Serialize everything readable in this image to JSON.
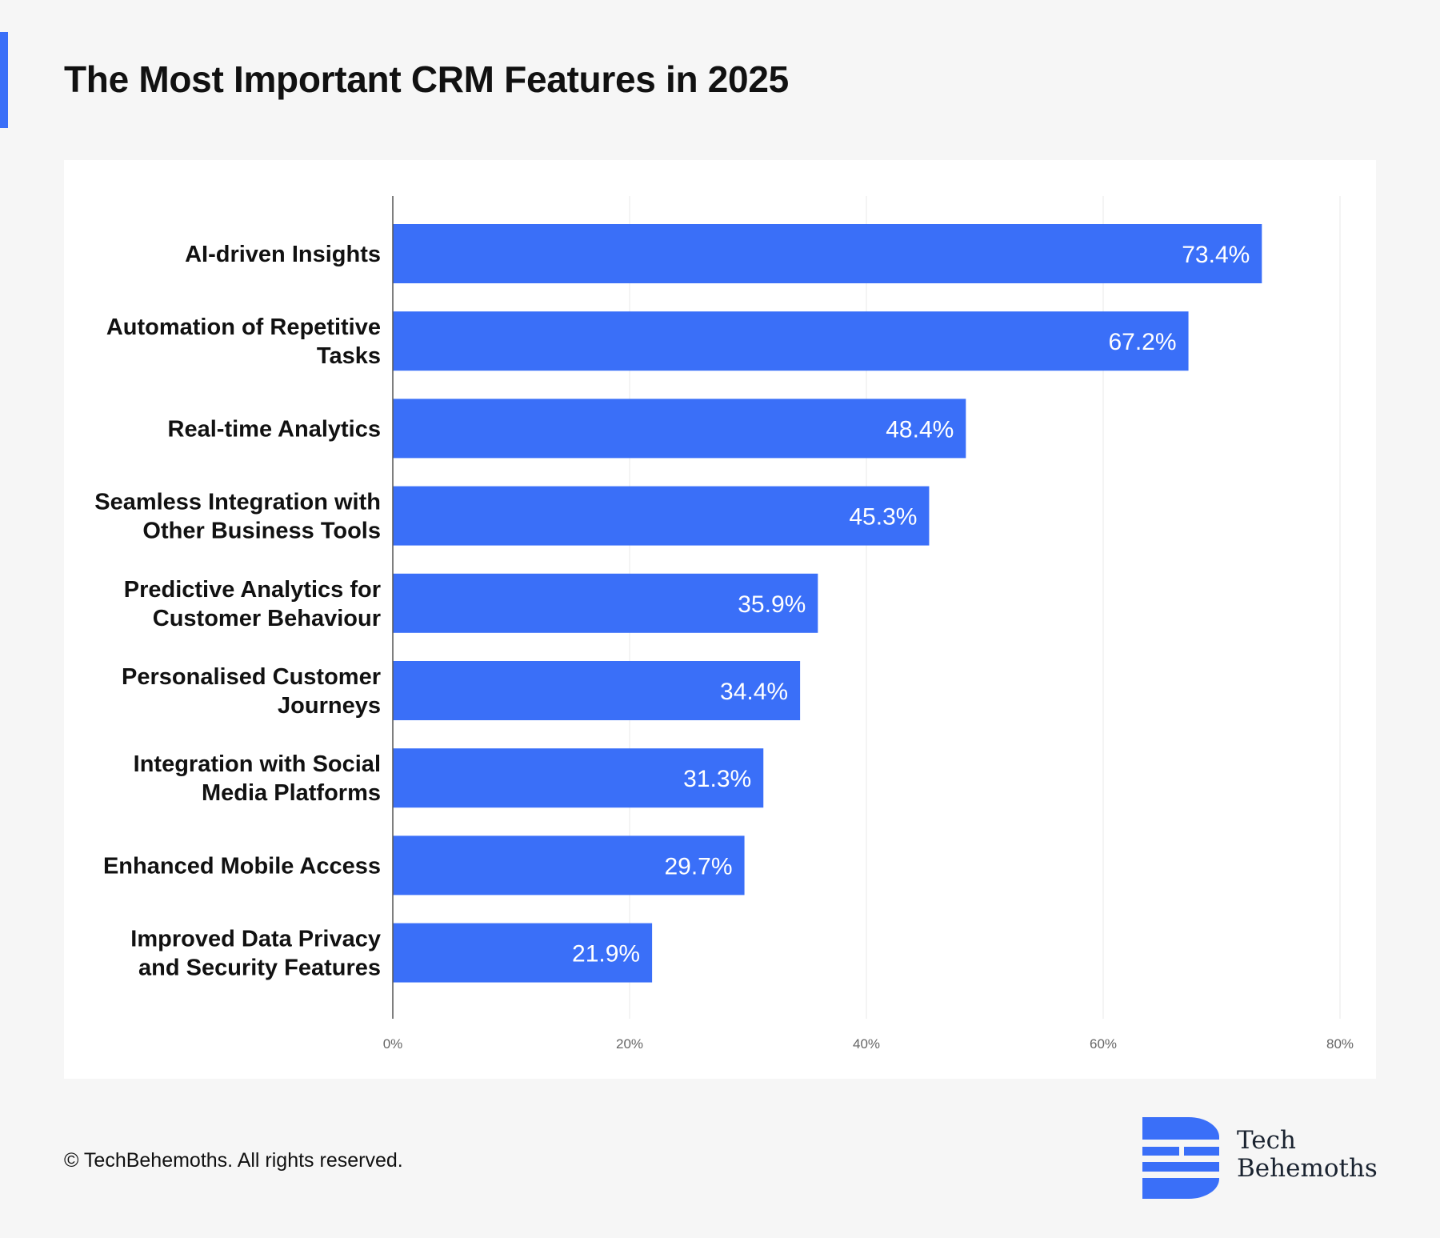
{
  "title": "The Most Important CRM Features in 2025",
  "accent_color": "#3a6ff8",
  "chart_data": {
    "type": "bar",
    "orientation": "horizontal",
    "categories": [
      [
        "AI-driven Insights"
      ],
      [
        "Automation of Repetitive",
        "Tasks"
      ],
      [
        "Real-time Analytics"
      ],
      [
        "Seamless Integration with",
        "Other Business Tools"
      ],
      [
        "Predictive Analytics for",
        "Customer Behaviour"
      ],
      [
        "Personalised Customer",
        "Journeys"
      ],
      [
        "Integration with Social",
        "Media Platforms"
      ],
      [
        "Enhanced Mobile Access"
      ],
      [
        "Improved Data Privacy",
        "and Security Features"
      ]
    ],
    "values": [
      73.4,
      67.2,
      48.4,
      45.3,
      35.9,
      34.4,
      31.3,
      29.7,
      21.9
    ],
    "value_labels": [
      "73.4%",
      "67.2%",
      "48.4%",
      "45.3%",
      "35.9%",
      "34.4%",
      "31.3%",
      "29.7%",
      "21.9%"
    ],
    "xlim": [
      0,
      80
    ],
    "xticks": [
      0,
      20,
      40,
      60,
      80
    ],
    "xtick_labels": [
      "0%",
      "20%",
      "40%",
      "60%",
      "80%"
    ],
    "xlabel": "",
    "ylabel": "",
    "grid": true,
    "bar_color": "#3a6ff8",
    "grid_color": "#e8e8e8",
    "axis_color": "#555555"
  },
  "footer": {
    "copyright": "© TechBehemoths. All rights reserved."
  },
  "brand": {
    "name_line1": "Tech",
    "name_line2": "Behemoths",
    "logo_icon": "techbehemoths-logo-icon",
    "logo_color": "#3a6ff8"
  }
}
